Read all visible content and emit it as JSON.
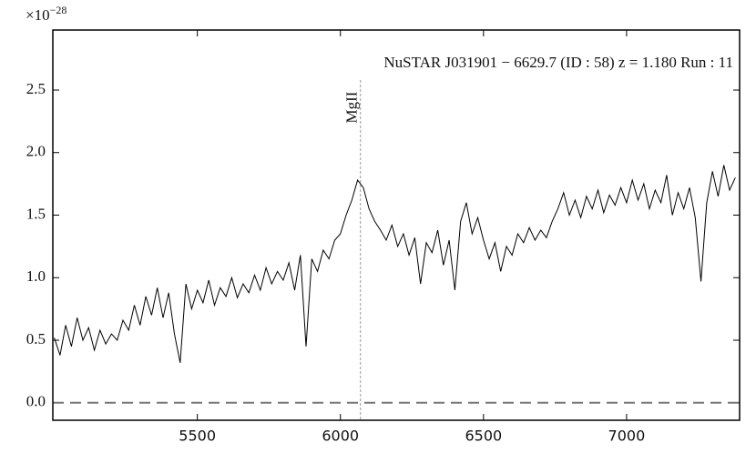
{
  "chart_data": {
    "type": "line",
    "title": "NuSTAR J031901 − 6629.7 (ID : 58)   z = 1.180   Run : 11",
    "y_multiplier": {
      "base": "×10",
      "exponent": "−28"
    },
    "x": [
      5000,
      5020,
      5040,
      5060,
      5080,
      5100,
      5120,
      5140,
      5160,
      5180,
      5200,
      5220,
      5240,
      5260,
      5280,
      5300,
      5320,
      5340,
      5360,
      5380,
      5400,
      5420,
      5440,
      5460,
      5480,
      5500,
      5520,
      5540,
      5560,
      5580,
      5600,
      5620,
      5640,
      5660,
      5680,
      5700,
      5720,
      5740,
      5760,
      5780,
      5800,
      5820,
      5840,
      5860,
      5880,
      5900,
      5920,
      5940,
      5960,
      5980,
      6000,
      6020,
      6040,
      6060,
      6080,
      6100,
      6120,
      6140,
      6160,
      6180,
      6200,
      6220,
      6240,
      6260,
      6280,
      6300,
      6320,
      6340,
      6360,
      6380,
      6400,
      6420,
      6440,
      6460,
      6480,
      6500,
      6520,
      6540,
      6560,
      6580,
      6600,
      6620,
      6640,
      6660,
      6680,
      6700,
      6720,
      6740,
      6760,
      6780,
      6800,
      6820,
      6840,
      6860,
      6880,
      6900,
      6920,
      6940,
      6960,
      6980,
      7000,
      7020,
      7040,
      7060,
      7080,
      7100,
      7120,
      7140,
      7160,
      7180,
      7200,
      7220,
      7240,
      7260,
      7280,
      7300,
      7320,
      7340,
      7360,
      7380
    ],
    "series": [
      {
        "color": "#000000",
        "values": [
          0.52,
          0.38,
          0.62,
          0.45,
          0.68,
          0.5,
          0.6,
          0.42,
          0.58,
          0.47,
          0.55,
          0.5,
          0.66,
          0.58,
          0.78,
          0.62,
          0.85,
          0.7,
          0.92,
          0.68,
          0.88,
          0.55,
          0.32,
          0.95,
          0.75,
          0.9,
          0.8,
          0.98,
          0.78,
          0.92,
          0.85,
          1.0,
          0.84,
          0.95,
          0.88,
          1.02,
          0.9,
          1.08,
          0.95,
          1.05,
          0.98,
          1.12,
          0.9,
          1.18,
          0.45,
          1.15,
          1.05,
          1.22,
          1.15,
          1.3,
          1.35,
          1.5,
          1.62,
          1.78,
          1.72,
          1.55,
          1.45,
          1.38,
          1.3,
          1.42,
          1.25,
          1.35,
          1.18,
          1.32,
          0.95,
          1.28,
          1.2,
          1.38,
          1.1,
          1.3,
          0.9,
          1.45,
          1.6,
          1.35,
          1.48,
          1.3,
          1.15,
          1.28,
          1.05,
          1.25,
          1.18,
          1.35,
          1.28,
          1.4,
          1.3,
          1.38,
          1.32,
          1.45,
          1.55,
          1.68,
          1.5,
          1.62,
          1.48,
          1.65,
          1.55,
          1.7,
          1.52,
          1.66,
          1.58,
          1.72,
          1.6,
          1.78,
          1.62,
          1.75,
          1.55,
          1.7,
          1.6,
          1.82,
          1.5,
          1.68,
          1.55,
          1.72,
          1.48,
          0.97,
          1.6,
          1.85,
          1.65,
          1.9,
          1.7,
          1.8
        ]
      }
    ],
    "xlim": [
      4995,
      7395
    ],
    "xticks": [
      5500,
      6000,
      6500,
      7000
    ],
    "ylim": [
      -0.14,
      2.98
    ],
    "yticks": [
      {
        "value": 0,
        "label": "0.0"
      },
      0.5,
      {
        "value": 1,
        "label": "1.0"
      },
      1.5,
      {
        "value": 2,
        "label": "2.0"
      },
      2.5
    ],
    "hlines": [
      {
        "y": 0,
        "color": "#777777"
      }
    ],
    "vlines": [
      {
        "x": 6070,
        "label": "MgII",
        "color": "#999999"
      }
    ]
  }
}
